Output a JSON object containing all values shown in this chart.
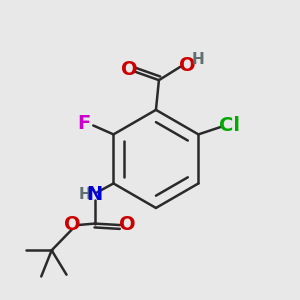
{
  "bg_color": "#e8e8e8",
  "bond_color": "#2a2a2a",
  "bond_width": 1.8,
  "atom_colors": {
    "O": "#cc0000",
    "F": "#cc00cc",
    "Cl": "#00aa00",
    "N": "#0000dd",
    "H": "#607070"
  },
  "font_size": 14,
  "font_size_H": 11
}
